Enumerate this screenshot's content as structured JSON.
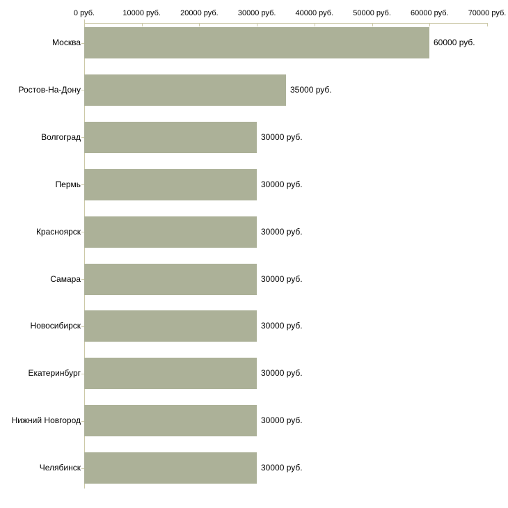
{
  "chart_data": {
    "type": "bar",
    "orientation": "horizontal",
    "title": "",
    "xlabel": "",
    "ylabel": "",
    "unit": "руб.",
    "grid": false,
    "legend": "none",
    "categories": [
      "Москва",
      "Ростов-На-Дону",
      "Волгоград",
      "Пермь",
      "Красноярск",
      "Самара",
      "Новосибирск",
      "Екатеринбург",
      "Нижний Новгород",
      "Челябинск"
    ],
    "values": [
      60000,
      35000,
      30000,
      30000,
      30000,
      30000,
      30000,
      30000,
      30000,
      30000
    ],
    "value_labels": [
      "60000 руб.",
      "35000 руб.",
      "30000 руб.",
      "30000 руб.",
      "30000 руб.",
      "30000 руб.",
      "30000 руб.",
      "30000 руб.",
      "30000 руб.",
      "30000 руб."
    ],
    "x_axis": {
      "position": "top",
      "min": 0,
      "max": 70000,
      "tick_step": 10000,
      "tick_labels": [
        "0 руб.",
        "10000 руб.",
        "20000 руб.",
        "30000 руб.",
        "40000 руб.",
        "50000 руб.",
        "60000 руб.",
        "70000 руб."
      ]
    },
    "colors": {
      "bar": "#acb198",
      "axis": "#cbc8a6",
      "text": "#000000",
      "background": "#ffffff"
    }
  }
}
